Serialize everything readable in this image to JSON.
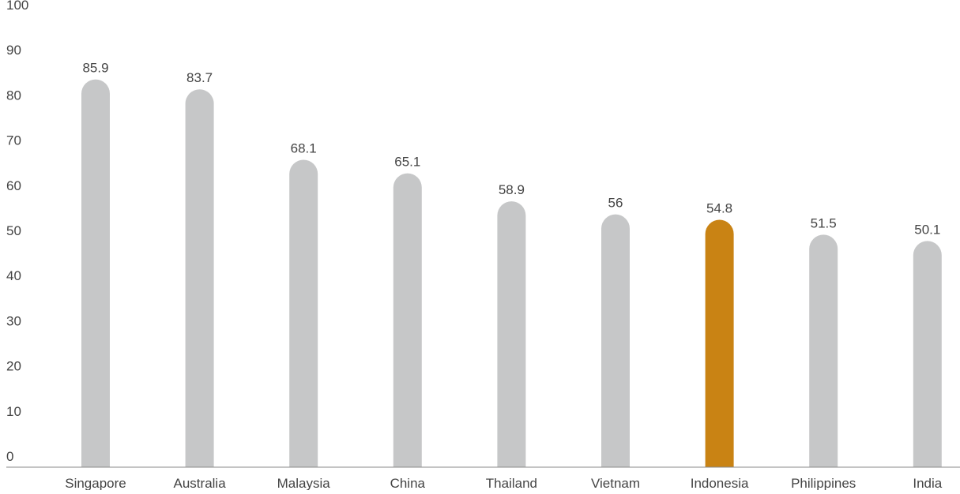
{
  "chart_data": {
    "type": "bar",
    "categories": [
      "Singapore",
      "Australia",
      "Malaysia",
      "China",
      "Thailand",
      "Vietnam",
      "Indonesia",
      "Philippines",
      "India"
    ],
    "values": [
      85.9,
      83.7,
      68.1,
      65.1,
      58.9,
      56,
      54.8,
      51.5,
      50.1
    ],
    "value_labels": [
      "85.9",
      "83.7",
      "68.1",
      "65.1",
      "58.9",
      "56",
      "54.8",
      "51.5",
      "50.1"
    ],
    "yticks": [
      "0",
      "10",
      "20",
      "30",
      "40",
      "50",
      "60",
      "70",
      "80",
      "90",
      "100"
    ],
    "ylim": [
      0,
      100
    ],
    "grid": false,
    "legend": "none",
    "highlight_category": "Indonesia",
    "colors": {
      "bar": "#c6c7c8",
      "highlight": "#c98314",
      "axis": "#888888",
      "text": "#444444"
    }
  }
}
